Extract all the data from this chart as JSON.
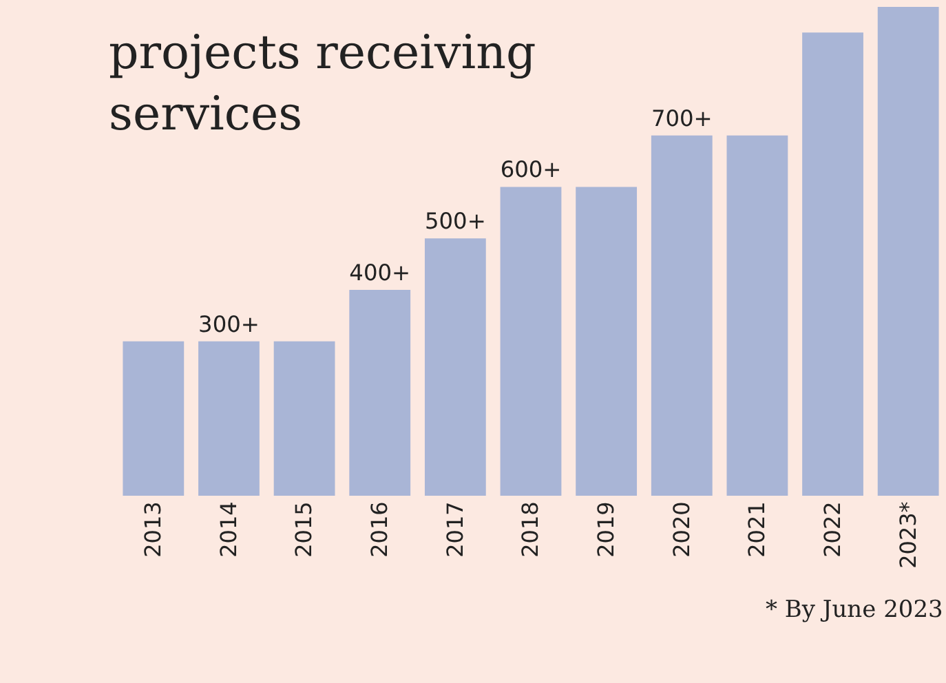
{
  "chart_data": {
    "type": "bar",
    "title": "projects receiving\nservices",
    "categories": [
      "2013",
      "2014",
      "2015",
      "2016",
      "2017",
      "2018",
      "2019",
      "2020",
      "2021",
      "2022",
      "2023*"
    ],
    "values": [
      300,
      300,
      300,
      400,
      500,
      600,
      600,
      700,
      700,
      900,
      950
    ],
    "value_labels": [
      null,
      "300+",
      null,
      "400+",
      "500+",
      "600+",
      null,
      "700+",
      null,
      null,
      null
    ],
    "color": "#a9b5d6",
    "ylim": [
      0,
      950
    ],
    "tick_labels": "x",
    "grid": false,
    "legend": false,
    "annotations": [
      "* By June 2023"
    ]
  }
}
